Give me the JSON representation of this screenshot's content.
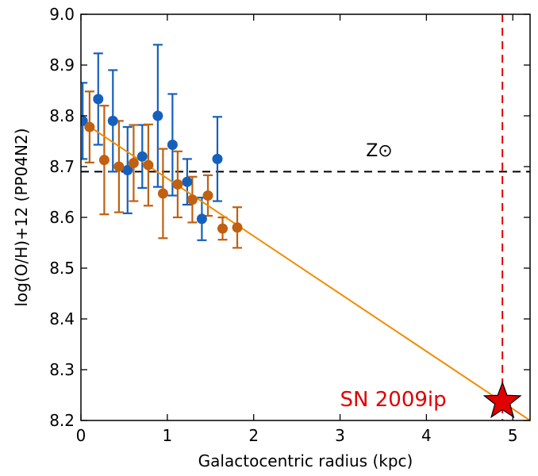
{
  "chart_data": {
    "type": "scatter",
    "xlabel": "Galactocentric radius (kpc)",
    "ylabel": "log(O/H)+12 (PP04N2)",
    "xlim": [
      0,
      5.2
    ],
    "ylim": [
      8.2,
      9.0
    ],
    "xticks": [
      "0",
      "1",
      "2",
      "3",
      "4",
      "5"
    ],
    "xtick_values": [
      0,
      1,
      2,
      3,
      4,
      5
    ],
    "yticks": [
      "8.2",
      "8.3",
      "8.4",
      "8.5",
      "8.6",
      "8.7",
      "8.8",
      "8.9",
      "9.0"
    ],
    "ytick_values": [
      8.2,
      8.3,
      8.4,
      8.5,
      8.6,
      8.7,
      8.8,
      8.9,
      9.0
    ],
    "grid": false,
    "series": [
      {
        "color": "#1560bd",
        "points": [
          {
            "x": 0.02,
            "y": 8.79,
            "yerr": 0.075
          },
          {
            "x": 0.2,
            "y": 8.833,
            "yerr": 0.09
          },
          {
            "x": 0.37,
            "y": 8.79,
            "yerr": 0.1
          },
          {
            "x": 0.54,
            "y": 8.693,
            "yerr": 0.085
          },
          {
            "x": 0.71,
            "y": 8.72,
            "yerr": 0.062
          },
          {
            "x": 0.89,
            "y": 8.8,
            "yerr": 0.14
          },
          {
            "x": 1.06,
            "y": 8.743,
            "yerr": 0.1
          },
          {
            "x": 1.23,
            "y": 8.67,
            "yerr": 0.045
          },
          {
            "x": 1.4,
            "y": 8.597,
            "yerr": 0.042
          },
          {
            "x": 1.58,
            "y": 8.715,
            "yerr": 0.083
          }
        ]
      },
      {
        "color": "#c06010",
        "points": [
          {
            "x": 0.1,
            "y": 8.778,
            "yerr": 0.07
          },
          {
            "x": 0.27,
            "y": 8.713,
            "yerr": 0.107
          },
          {
            "x": 0.44,
            "y": 8.7,
            "yerr": 0.09
          },
          {
            "x": 0.61,
            "y": 8.707,
            "yerr": 0.075
          },
          {
            "x": 0.78,
            "y": 8.703,
            "yerr": 0.08
          },
          {
            "x": 0.95,
            "y": 8.647,
            "yerr": 0.088
          },
          {
            "x": 1.12,
            "y": 8.665,
            "yerr": 0.065
          },
          {
            "x": 1.29,
            "y": 8.635,
            "yerr": 0.045
          },
          {
            "x": 1.47,
            "y": 8.643,
            "yerr": 0.04
          },
          {
            "x": 1.64,
            "y": 8.578,
            "yerr": 0.022
          },
          {
            "x": 1.81,
            "y": 8.58,
            "yerr": 0.04
          }
        ]
      }
    ],
    "fit_line": {
      "color": "#f08c00",
      "x": [
        0,
        5.2
      ],
      "y": [
        8.79,
        8.2
      ]
    },
    "solar_line": {
      "y": 8.69,
      "color": "#000000",
      "style": "dashed"
    },
    "solar_label": "Z⊙",
    "sn_line": {
      "x": 4.88,
      "color": "#e00000",
      "style": "dashed"
    },
    "sn_marker": {
      "x": 4.88,
      "y": 8.237,
      "color": "#e00000",
      "shape": "star"
    },
    "sn_label": "SN 2009ip",
    "sn_label_color": "#e00000"
  }
}
